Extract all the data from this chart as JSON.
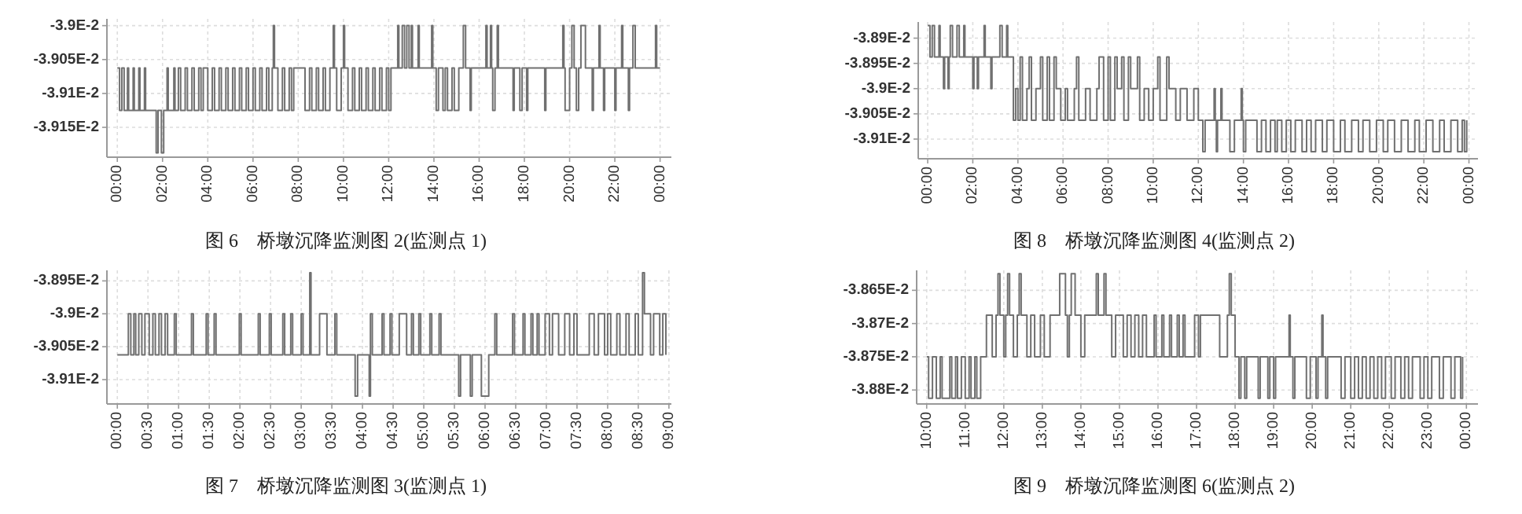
{
  "chart_data": [
    {
      "type": "step",
      "title": "图 6　桥墩沉降监测图 2(监测点 1)",
      "grid": true,
      "xlim": [
        -0.46,
        24.5
      ],
      "ylim": [
        -0.039194,
        -0.03899
      ],
      "xticks": [
        {
          "value": 0,
          "label": "00:00"
        },
        {
          "value": 2,
          "label": "02:00"
        },
        {
          "value": 4,
          "label": "04:00"
        },
        {
          "value": 6,
          "label": "06:00"
        },
        {
          "value": 8,
          "label": "08:00"
        },
        {
          "value": 10,
          "label": "10:00"
        },
        {
          "value": 12,
          "label": "12:00"
        },
        {
          "value": 14,
          "label": "14:00"
        },
        {
          "value": 16,
          "label": "16:00"
        },
        {
          "value": 18,
          "label": "18:00"
        },
        {
          "value": 20,
          "label": "20:00"
        },
        {
          "value": 22,
          "label": "22:00"
        },
        {
          "value": 24,
          "label": "00:00"
        }
      ],
      "yticks": [
        {
          "value": -0.039,
          "label": "-3.9E-2"
        },
        {
          "value": -0.03905,
          "label": "-3.905E-2"
        },
        {
          "value": -0.0391,
          "label": "-3.91E-2"
        },
        {
          "value": -0.03915,
          "label": "-3.915E-2"
        }
      ],
      "series": [
        {
          "color": "#707070",
          "x": [
            0,
            0.1,
            0.2,
            0.3,
            0.45,
            0.5,
            0.7,
            0.75,
            0.95,
            1.0,
            1.2,
            1.25,
            1.72,
            1.8,
            1.95,
            2.05,
            2.2,
            2.25,
            2.5,
            2.55,
            2.7,
            2.8,
            3.0,
            3.1,
            3.3,
            3.4,
            3.6,
            3.7,
            3.8,
            4.0,
            4.2,
            4.3,
            4.5,
            4.6,
            4.8,
            4.9,
            5.1,
            5.2,
            5.4,
            5.5,
            5.7,
            5.8,
            6.0,
            6.1,
            6.3,
            6.4,
            6.6,
            6.7,
            6.85,
            6.9,
            6.95,
            7.1,
            7.3,
            7.4,
            7.6,
            7.7,
            7.8,
            8.3,
            8.5,
            8.6,
            8.8,
            8.9,
            9.1,
            9.2,
            9.4,
            9.55,
            9.6,
            9.7,
            9.9,
            10.0,
            10.05,
            10.2,
            10.4,
            10.5,
            10.7,
            10.8,
            11.0,
            11.1,
            11.3,
            11.4,
            11.6,
            11.7,
            11.9,
            12.0,
            12.1,
            12.4,
            12.45,
            12.6,
            12.7,
            12.8,
            12.9,
            13.0,
            13.05,
            13.3,
            13.35,
            13.9,
            13.95,
            14.1,
            14.2,
            14.4,
            14.5,
            14.6,
            14.8,
            14.9,
            15.1,
            15.3,
            15.4,
            15.6,
            15.65,
            16.3,
            16.35,
            16.5,
            16.55,
            16.6,
            16.7,
            16.8,
            16.85,
            17.5,
            17.55,
            17.8,
            17.9,
            18.1,
            18.15,
            18.9,
            18.95,
            19.7,
            19.75,
            19.8,
            20.0,
            20.1,
            20.2,
            20.3,
            20.4,
            20.5,
            20.7,
            21.0,
            21.05,
            21.3,
            21.35,
            21.5,
            21.55,
            22.0,
            22.05,
            22.3,
            22.35,
            22.6,
            22.65,
            22.8,
            22.9,
            23.8,
            23.85,
            24.0
          ],
          "values": [
            -0.0390625,
            -0.039125,
            -0.0390625,
            -0.039125,
            -0.0390625,
            -0.039125,
            -0.0390625,
            -0.039125,
            -0.0390625,
            -0.039125,
            -0.0390625,
            -0.039125,
            -0.0391875,
            -0.039125,
            -0.0391875,
            -0.039125,
            -0.0390625,
            -0.039125,
            -0.0390625,
            -0.039125,
            -0.0390625,
            -0.039125,
            -0.0390625,
            -0.039125,
            -0.0390625,
            -0.039125,
            -0.0390625,
            -0.039125,
            -0.0390625,
            -0.039125,
            -0.0390625,
            -0.039125,
            -0.0390625,
            -0.039125,
            -0.0390625,
            -0.039125,
            -0.0390625,
            -0.039125,
            -0.0390625,
            -0.039125,
            -0.0390625,
            -0.039125,
            -0.0390625,
            -0.039125,
            -0.0390625,
            -0.039125,
            -0.0390625,
            -0.039125,
            -0.0390625,
            -0.039,
            -0.0390625,
            -0.039125,
            -0.0390625,
            -0.039125,
            -0.0390625,
            -0.039125,
            -0.0390625,
            -0.039125,
            -0.0390625,
            -0.039125,
            -0.0390625,
            -0.039125,
            -0.0390625,
            -0.039125,
            -0.0390625,
            -0.039,
            -0.0390625,
            -0.039125,
            -0.0390625,
            -0.039,
            -0.0390625,
            -0.039125,
            -0.0390625,
            -0.039125,
            -0.0390625,
            -0.039125,
            -0.0390625,
            -0.039125,
            -0.0390625,
            -0.039125,
            -0.0390625,
            -0.039125,
            -0.0390625,
            -0.039125,
            -0.0390625,
            -0.039,
            -0.0390625,
            -0.039,
            -0.0390625,
            -0.039,
            -0.0390625,
            -0.039,
            -0.0390625,
            -0.039,
            -0.0390625,
            -0.039,
            -0.0390625,
            -0.039125,
            -0.0390625,
            -0.039125,
            -0.0390625,
            -0.039125,
            -0.0390625,
            -0.039125,
            -0.0390625,
            -0.039,
            -0.0390625,
            -0.039125,
            -0.0390625,
            -0.039,
            -0.0390625,
            -0.039,
            -0.0390625,
            -0.039125,
            -0.0390625,
            -0.039,
            -0.0390625,
            -0.039125,
            -0.0390625,
            -0.039125,
            -0.0390625,
            -0.039125,
            -0.0390625,
            -0.039125,
            -0.0390625,
            -0.039,
            -0.0390625,
            -0.039125,
            -0.0390625,
            -0.039,
            -0.0390625,
            -0.039125,
            -0.0390625,
            -0.039,
            -0.0390625,
            -0.039125,
            -0.0390625,
            -0.039,
            -0.0390625,
            -0.039125,
            -0.0390625,
            -0.039125,
            -0.0390625,
            -0.039,
            -0.0390625,
            -0.039125,
            -0.0390625,
            -0.039,
            -0.0390625,
            -0.039,
            -0.0390625,
            -0.0390625
          ]
        }
      ]
    },
    {
      "type": "step",
      "title": "图 8　桥墩沉降监测图 4(监测点 2)",
      "grid": true,
      "xlim": [
        -0.42,
        24.4
      ],
      "ylim": [
        -0.039139,
        -0.038868
      ],
      "xticks": [
        {
          "value": 0,
          "label": "00:00"
        },
        {
          "value": 2,
          "label": "02:00"
        },
        {
          "value": 4,
          "label": "04:00"
        },
        {
          "value": 6,
          "label": "06:00"
        },
        {
          "value": 8,
          "label": "08:00"
        },
        {
          "value": 10,
          "label": "10:00"
        },
        {
          "value": 12,
          "label": "12:00"
        },
        {
          "value": 14,
          "label": "14:00"
        },
        {
          "value": 16,
          "label": "16:00"
        },
        {
          "value": 18,
          "label": "18:00"
        },
        {
          "value": 20,
          "label": "20:00"
        },
        {
          "value": 22,
          "label": "22:00"
        },
        {
          "value": 24,
          "label": "00:00"
        }
      ],
      "yticks": [
        {
          "value": -0.0389,
          "label": "-3.89E-2"
        },
        {
          "value": -0.03895,
          "label": "-3.895E-2"
        },
        {
          "value": -0.039,
          "label": "-3.9E-2"
        },
        {
          "value": -0.03905,
          "label": "-3.905E-2"
        },
        {
          "value": -0.0391,
          "label": "-3.91E-2"
        }
      ],
      "series": [
        {
          "color": "#707070",
          "x": [
            0,
            0.1,
            0.2,
            0.3,
            0.5,
            0.55,
            0.7,
            0.75,
            0.9,
            0.95,
            1.0,
            1.1,
            1.3,
            1.4,
            1.6,
            1.65,
            2.0,
            2.05,
            2.2,
            2.25,
            2.5,
            2.55,
            2.8,
            2.85,
            3.2,
            3.3,
            3.5,
            3.55,
            3.8,
            3.9,
            4.0,
            4.1,
            4.2,
            4.4,
            4.5,
            4.6,
            4.8,
            5.0,
            5.1,
            5.3,
            5.4,
            5.6,
            5.7,
            5.9,
            6.1,
            6.2,
            6.5,
            6.6,
            6.7,
            7.0,
            7.2,
            7.5,
            7.6,
            7.8,
            8.0,
            8.1,
            8.3,
            8.4,
            8.6,
            8.7,
            8.9,
            9.0,
            9.3,
            9.4,
            9.6,
            9.8,
            10.0,
            10.2,
            10.3,
            10.6,
            10.7,
            11.0,
            11.2,
            11.5,
            11.8,
            12.0,
            12.2,
            12.3,
            12.7,
            12.75,
            12.8,
            12.85,
            13.0,
            13.05,
            13.4,
            13.6,
            13.9,
            13.95,
            14.0,
            14.1,
            14.6,
            14.8,
            15.0,
            15.2,
            15.4,
            15.5,
            15.7,
            15.9,
            16.1,
            16.3,
            16.6,
            16.8,
            17.0,
            17.2,
            17.5,
            17.7,
            18.0,
            18.3,
            18.5,
            18.8,
            19.1,
            19.3,
            19.6,
            19.9,
            20.2,
            20.4,
            20.7,
            21.0,
            21.3,
            21.6,
            21.8,
            22.1,
            22.4,
            22.7,
            22.9,
            23.2,
            23.5,
            23.7,
            23.8,
            23.9
          ],
          "values": [
            -0.038875,
            -0.0389375,
            -0.038875,
            -0.0389375,
            -0.038875,
            -0.0389375,
            -0.039,
            -0.0389375,
            -0.039,
            -0.0389375,
            -0.038875,
            -0.0389375,
            -0.038875,
            -0.0389375,
            -0.038875,
            -0.0389375,
            -0.039,
            -0.0389375,
            -0.039,
            -0.0389375,
            -0.038875,
            -0.0389375,
            -0.039,
            -0.0389375,
            -0.038875,
            -0.0389375,
            -0.038875,
            -0.0389375,
            -0.0390625,
            -0.039,
            -0.0390625,
            -0.0389375,
            -0.0390625,
            -0.039,
            -0.0389375,
            -0.0390625,
            -0.039,
            -0.0389375,
            -0.0390625,
            -0.0389375,
            -0.0390625,
            -0.0389375,
            -0.039,
            -0.0390625,
            -0.039,
            -0.0390625,
            -0.039,
            -0.0389375,
            -0.0390625,
            -0.039,
            -0.0390625,
            -0.039,
            -0.0389375,
            -0.0390625,
            -0.0389375,
            -0.0390625,
            -0.0389375,
            -0.039,
            -0.0389375,
            -0.0390625,
            -0.0389375,
            -0.039,
            -0.0389375,
            -0.0390625,
            -0.039,
            -0.0390625,
            -0.039,
            -0.0389375,
            -0.0390625,
            -0.0389375,
            -0.039,
            -0.0390625,
            -0.039,
            -0.0390625,
            -0.039,
            -0.0390625,
            -0.039125,
            -0.0390625,
            -0.039,
            -0.0390625,
            -0.039125,
            -0.0390625,
            -0.039,
            -0.0390625,
            -0.039125,
            -0.0390625,
            -0.039,
            -0.0390625,
            -0.039125,
            -0.0390625,
            -0.039125,
            -0.0390625,
            -0.039125,
            -0.0390625,
            -0.039125,
            -0.0390625,
            -0.039125,
            -0.0390625,
            -0.039125,
            -0.0390625,
            -0.039125,
            -0.0390625,
            -0.039125,
            -0.0390625,
            -0.039125,
            -0.0390625,
            -0.039125,
            -0.0390625,
            -0.039125,
            -0.0390625,
            -0.039125,
            -0.0390625,
            -0.039125,
            -0.0390625,
            -0.039125,
            -0.0390625,
            -0.039125,
            -0.0390625,
            -0.039125,
            -0.0390625,
            -0.039125,
            -0.0390625,
            -0.039125,
            -0.0390625,
            -0.039125,
            -0.0390625,
            -0.039125,
            -0.0390625,
            -0.039125,
            -0.0390625
          ]
        }
      ]
    },
    {
      "type": "step",
      "title": "图 7　桥墩沉降监测图 3(监测点 1)",
      "grid": true,
      "xlim": [
        -0.17,
        9.04
      ],
      "ylim": [
        -0.039137,
        -0.038934
      ],
      "xticks": [
        {
          "value": 0,
          "label": "00:00"
        },
        {
          "value": 0.5,
          "label": "00:30"
        },
        {
          "value": 1,
          "label": "01:00"
        },
        {
          "value": 1.5,
          "label": "01:30"
        },
        {
          "value": 2,
          "label": "02:00"
        },
        {
          "value": 2.5,
          "label": "02:30"
        },
        {
          "value": 3,
          "label": "03:00"
        },
        {
          "value": 3.5,
          "label": "03:30"
        },
        {
          "value": 4,
          "label": "04:00"
        },
        {
          "value": 4.5,
          "label": "04:30"
        },
        {
          "value": 5,
          "label": "05:00"
        },
        {
          "value": 5.5,
          "label": "05:30"
        },
        {
          "value": 6,
          "label": "06:00"
        },
        {
          "value": 6.5,
          "label": "06:30"
        },
        {
          "value": 7,
          "label": "07:00"
        },
        {
          "value": 7.5,
          "label": "07:30"
        },
        {
          "value": 8,
          "label": "08:00"
        },
        {
          "value": 8.5,
          "label": "08:30"
        },
        {
          "value": 9,
          "label": "09:00"
        }
      ],
      "yticks": [
        {
          "value": -0.03895,
          "label": "-3.895E-2"
        },
        {
          "value": -0.039,
          "label": "-3.9E-2"
        },
        {
          "value": -0.03905,
          "label": "-3.905E-2"
        },
        {
          "value": -0.0391,
          "label": "-3.91E-2"
        }
      ],
      "series": [
        {
          "color": "#707070",
          "x": [
            0,
            0.18,
            0.22,
            0.27,
            0.3,
            0.35,
            0.4,
            0.45,
            0.52,
            0.58,
            0.62,
            0.68,
            0.72,
            0.78,
            0.82,
            0.93,
            0.96,
            1.21,
            1.24,
            1.45,
            1.48,
            1.58,
            1.61,
            1.99,
            2.02,
            2.3,
            2.33,
            2.48,
            2.51,
            2.7,
            2.73,
            2.83,
            2.86,
            3.0,
            3.03,
            3.14,
            3.16,
            3.3,
            3.42,
            3.55,
            3.58,
            3.88,
            3.92,
            4.11,
            4.13,
            4.16,
            4.32,
            4.35,
            4.45,
            4.48,
            4.6,
            4.72,
            4.8,
            4.83,
            4.92,
            4.95,
            5.1,
            5.13,
            5.25,
            5.28,
            5.57,
            5.6,
            5.76,
            5.79,
            5.94,
            6.06,
            6.16,
            6.19,
            6.45,
            6.48,
            6.62,
            6.65,
            6.75,
            6.78,
            6.85,
            6.88,
            6.98,
            7.05,
            7.1,
            7.2,
            7.3,
            7.38,
            7.45,
            7.5,
            7.7,
            7.78,
            7.85,
            7.95,
            8.0,
            8.05,
            8.15,
            8.2,
            8.3,
            8.35,
            8.45,
            8.5,
            8.57,
            8.6,
            8.7,
            8.75,
            8.85,
            8.9,
            8.95
          ],
          "values": [
            -0.0390625,
            -0.039,
            -0.0390625,
            -0.039,
            -0.0390625,
            -0.039,
            -0.0390625,
            -0.039,
            -0.0390625,
            -0.039,
            -0.0390625,
            -0.039,
            -0.0390625,
            -0.039,
            -0.0390625,
            -0.039,
            -0.0390625,
            -0.039,
            -0.0390625,
            -0.039,
            -0.0390625,
            -0.039,
            -0.0390625,
            -0.039,
            -0.0390625,
            -0.039,
            -0.0390625,
            -0.039,
            -0.0390625,
            -0.039,
            -0.0390625,
            -0.039,
            -0.0390625,
            -0.039,
            -0.0390625,
            -0.0389375,
            -0.0390625,
            -0.039,
            -0.0390625,
            -0.039,
            -0.0390625,
            -0.039125,
            -0.0390625,
            -0.039125,
            -0.039,
            -0.0390625,
            -0.039,
            -0.0390625,
            -0.039,
            -0.0390625,
            -0.039,
            -0.0390625,
            -0.039,
            -0.0390625,
            -0.039,
            -0.0390625,
            -0.039,
            -0.0390625,
            -0.039,
            -0.0390625,
            -0.039125,
            -0.0390625,
            -0.039125,
            -0.0390625,
            -0.039125,
            -0.0390625,
            -0.039,
            -0.0390625,
            -0.039,
            -0.0390625,
            -0.039,
            -0.0390625,
            -0.039,
            -0.0390625,
            -0.039,
            -0.0390625,
            -0.039,
            -0.0390625,
            -0.039,
            -0.0390625,
            -0.039,
            -0.0390625,
            -0.039,
            -0.0390625,
            -0.039,
            -0.0390625,
            -0.039,
            -0.0390625,
            -0.039,
            -0.0390625,
            -0.039,
            -0.0390625,
            -0.039,
            -0.0390625,
            -0.039,
            -0.0390625,
            -0.0389375,
            -0.039,
            -0.0390625,
            -0.039,
            -0.0390625,
            -0.039,
            -0.0390625
          ]
        }
      ]
    },
    {
      "type": "step",
      "title": "图 9　桥墩沉降监测图 6(监测点 2)",
      "grid": true,
      "xlim": [
        9.74,
        24.3
      ],
      "ylim": [
        -0.038821,
        -0.03862
      ],
      "xticks": [
        {
          "value": 10,
          "label": "10:00"
        },
        {
          "value": 11,
          "label": "11:00"
        },
        {
          "value": 12,
          "label": "12:00"
        },
        {
          "value": 13,
          "label": "13:00"
        },
        {
          "value": 14,
          "label": "14:00"
        },
        {
          "value": 15,
          "label": "15:00"
        },
        {
          "value": 16,
          "label": "16:00"
        },
        {
          "value": 17,
          "label": "17:00"
        },
        {
          "value": 18,
          "label": "18:00"
        },
        {
          "value": 19,
          "label": "19:00"
        },
        {
          "value": 20,
          "label": "20:00"
        },
        {
          "value": 21,
          "label": "21:00"
        },
        {
          "value": 22,
          "label": "22:00"
        },
        {
          "value": 23,
          "label": "23:00"
        },
        {
          "value": 24,
          "label": "00:00"
        }
      ],
      "yticks": [
        {
          "value": -0.03865,
          "label": "-3.865E-2"
        },
        {
          "value": -0.0387,
          "label": "-3.87E-2"
        },
        {
          "value": -0.03875,
          "label": "-3.875E-2"
        },
        {
          "value": -0.0388,
          "label": "-3.88E-2"
        }
      ],
      "series": [
        {
          "color": "#707070",
          "x": [
            10.0,
            10.05,
            10.15,
            10.25,
            10.35,
            10.4,
            10.6,
            10.65,
            10.75,
            10.8,
            10.9,
            11.0,
            11.1,
            11.15,
            11.25,
            11.3,
            11.4,
            11.55,
            11.7,
            11.8,
            11.85,
            11.9,
            12.0,
            12.05,
            12.1,
            12.15,
            12.25,
            12.35,
            12.4,
            12.45,
            12.6,
            12.7,
            12.8,
            12.95,
            13.05,
            13.2,
            13.45,
            13.6,
            13.65,
            13.7,
            13.75,
            13.85,
            14.0,
            14.1,
            14.4,
            14.45,
            14.6,
            14.65,
            14.8,
            14.9,
            15.1,
            15.2,
            15.3,
            15.4,
            15.5,
            15.6,
            15.7,
            15.9,
            15.95,
            16.1,
            16.15,
            16.3,
            16.35,
            16.5,
            16.55,
            16.65,
            16.7,
            16.95,
            17.05,
            17.1,
            17.6,
            17.8,
            17.85,
            17.9,
            18.0,
            18.1,
            18.15,
            18.25,
            18.3,
            18.6,
            18.65,
            18.85,
            18.9,
            19.0,
            19.05,
            19.4,
            19.43,
            19.5,
            19.55,
            19.85,
            19.95,
            20.1,
            20.15,
            20.25,
            20.28,
            20.35,
            20.4,
            20.75,
            20.85,
            21.0,
            21.1,
            21.2,
            21.3,
            21.4,
            21.5,
            21.6,
            21.7,
            21.8,
            21.9,
            22.05,
            22.15,
            22.3,
            22.4,
            22.5,
            22.6,
            22.8,
            22.9,
            23.0,
            23.1,
            23.3,
            23.4,
            23.6,
            23.7,
            23.85,
            23.9
          ],
          "values": [
            -0.03875,
            -0.0388125,
            -0.03875,
            -0.0388125,
            -0.03875,
            -0.0388125,
            -0.03875,
            -0.0388125,
            -0.03875,
            -0.0388125,
            -0.03875,
            -0.0388125,
            -0.03875,
            -0.0388125,
            -0.03875,
            -0.0388125,
            -0.03875,
            -0.0386875,
            -0.03875,
            -0.0386875,
            -0.038625,
            -0.0386875,
            -0.03875,
            -0.0386875,
            -0.038625,
            -0.0386875,
            -0.03875,
            -0.0386875,
            -0.038625,
            -0.0386875,
            -0.03875,
            -0.0386875,
            -0.03875,
            -0.0386875,
            -0.03875,
            -0.0386875,
            -0.038625,
            -0.0386875,
            -0.03875,
            -0.0386875,
            -0.038625,
            -0.0386875,
            -0.03875,
            -0.0386875,
            -0.038625,
            -0.0386875,
            -0.038625,
            -0.0386875,
            -0.03875,
            -0.0386875,
            -0.03875,
            -0.0386875,
            -0.03875,
            -0.0386875,
            -0.03875,
            -0.0386875,
            -0.03875,
            -0.0386875,
            -0.03875,
            -0.0386875,
            -0.03875,
            -0.0386875,
            -0.03875,
            -0.0386875,
            -0.03875,
            -0.0386875,
            -0.03875,
            -0.0386875,
            -0.03875,
            -0.0386875,
            -0.03875,
            -0.0386875,
            -0.038625,
            -0.0386875,
            -0.03875,
            -0.0388125,
            -0.03875,
            -0.0388125,
            -0.03875,
            -0.0388125,
            -0.03875,
            -0.0388125,
            -0.03875,
            -0.0388125,
            -0.03875,
            -0.0386875,
            -0.03875,
            -0.0388125,
            -0.03875,
            -0.0388125,
            -0.03875,
            -0.0388125,
            -0.03875,
            -0.0386875,
            -0.03875,
            -0.0388125,
            -0.03875,
            -0.0388125,
            -0.03875,
            -0.0388125,
            -0.03875,
            -0.0388125,
            -0.03875,
            -0.0388125,
            -0.03875,
            -0.0388125,
            -0.03875,
            -0.0388125,
            -0.03875,
            -0.0388125,
            -0.03875,
            -0.0388125,
            -0.03875,
            -0.0388125,
            -0.03875,
            -0.0388125,
            -0.03875,
            -0.0388125,
            -0.03875,
            -0.0388125,
            -0.03875,
            -0.0388125,
            -0.03875,
            -0.0388125,
            -0.03875
          ]
        }
      ]
    }
  ]
}
